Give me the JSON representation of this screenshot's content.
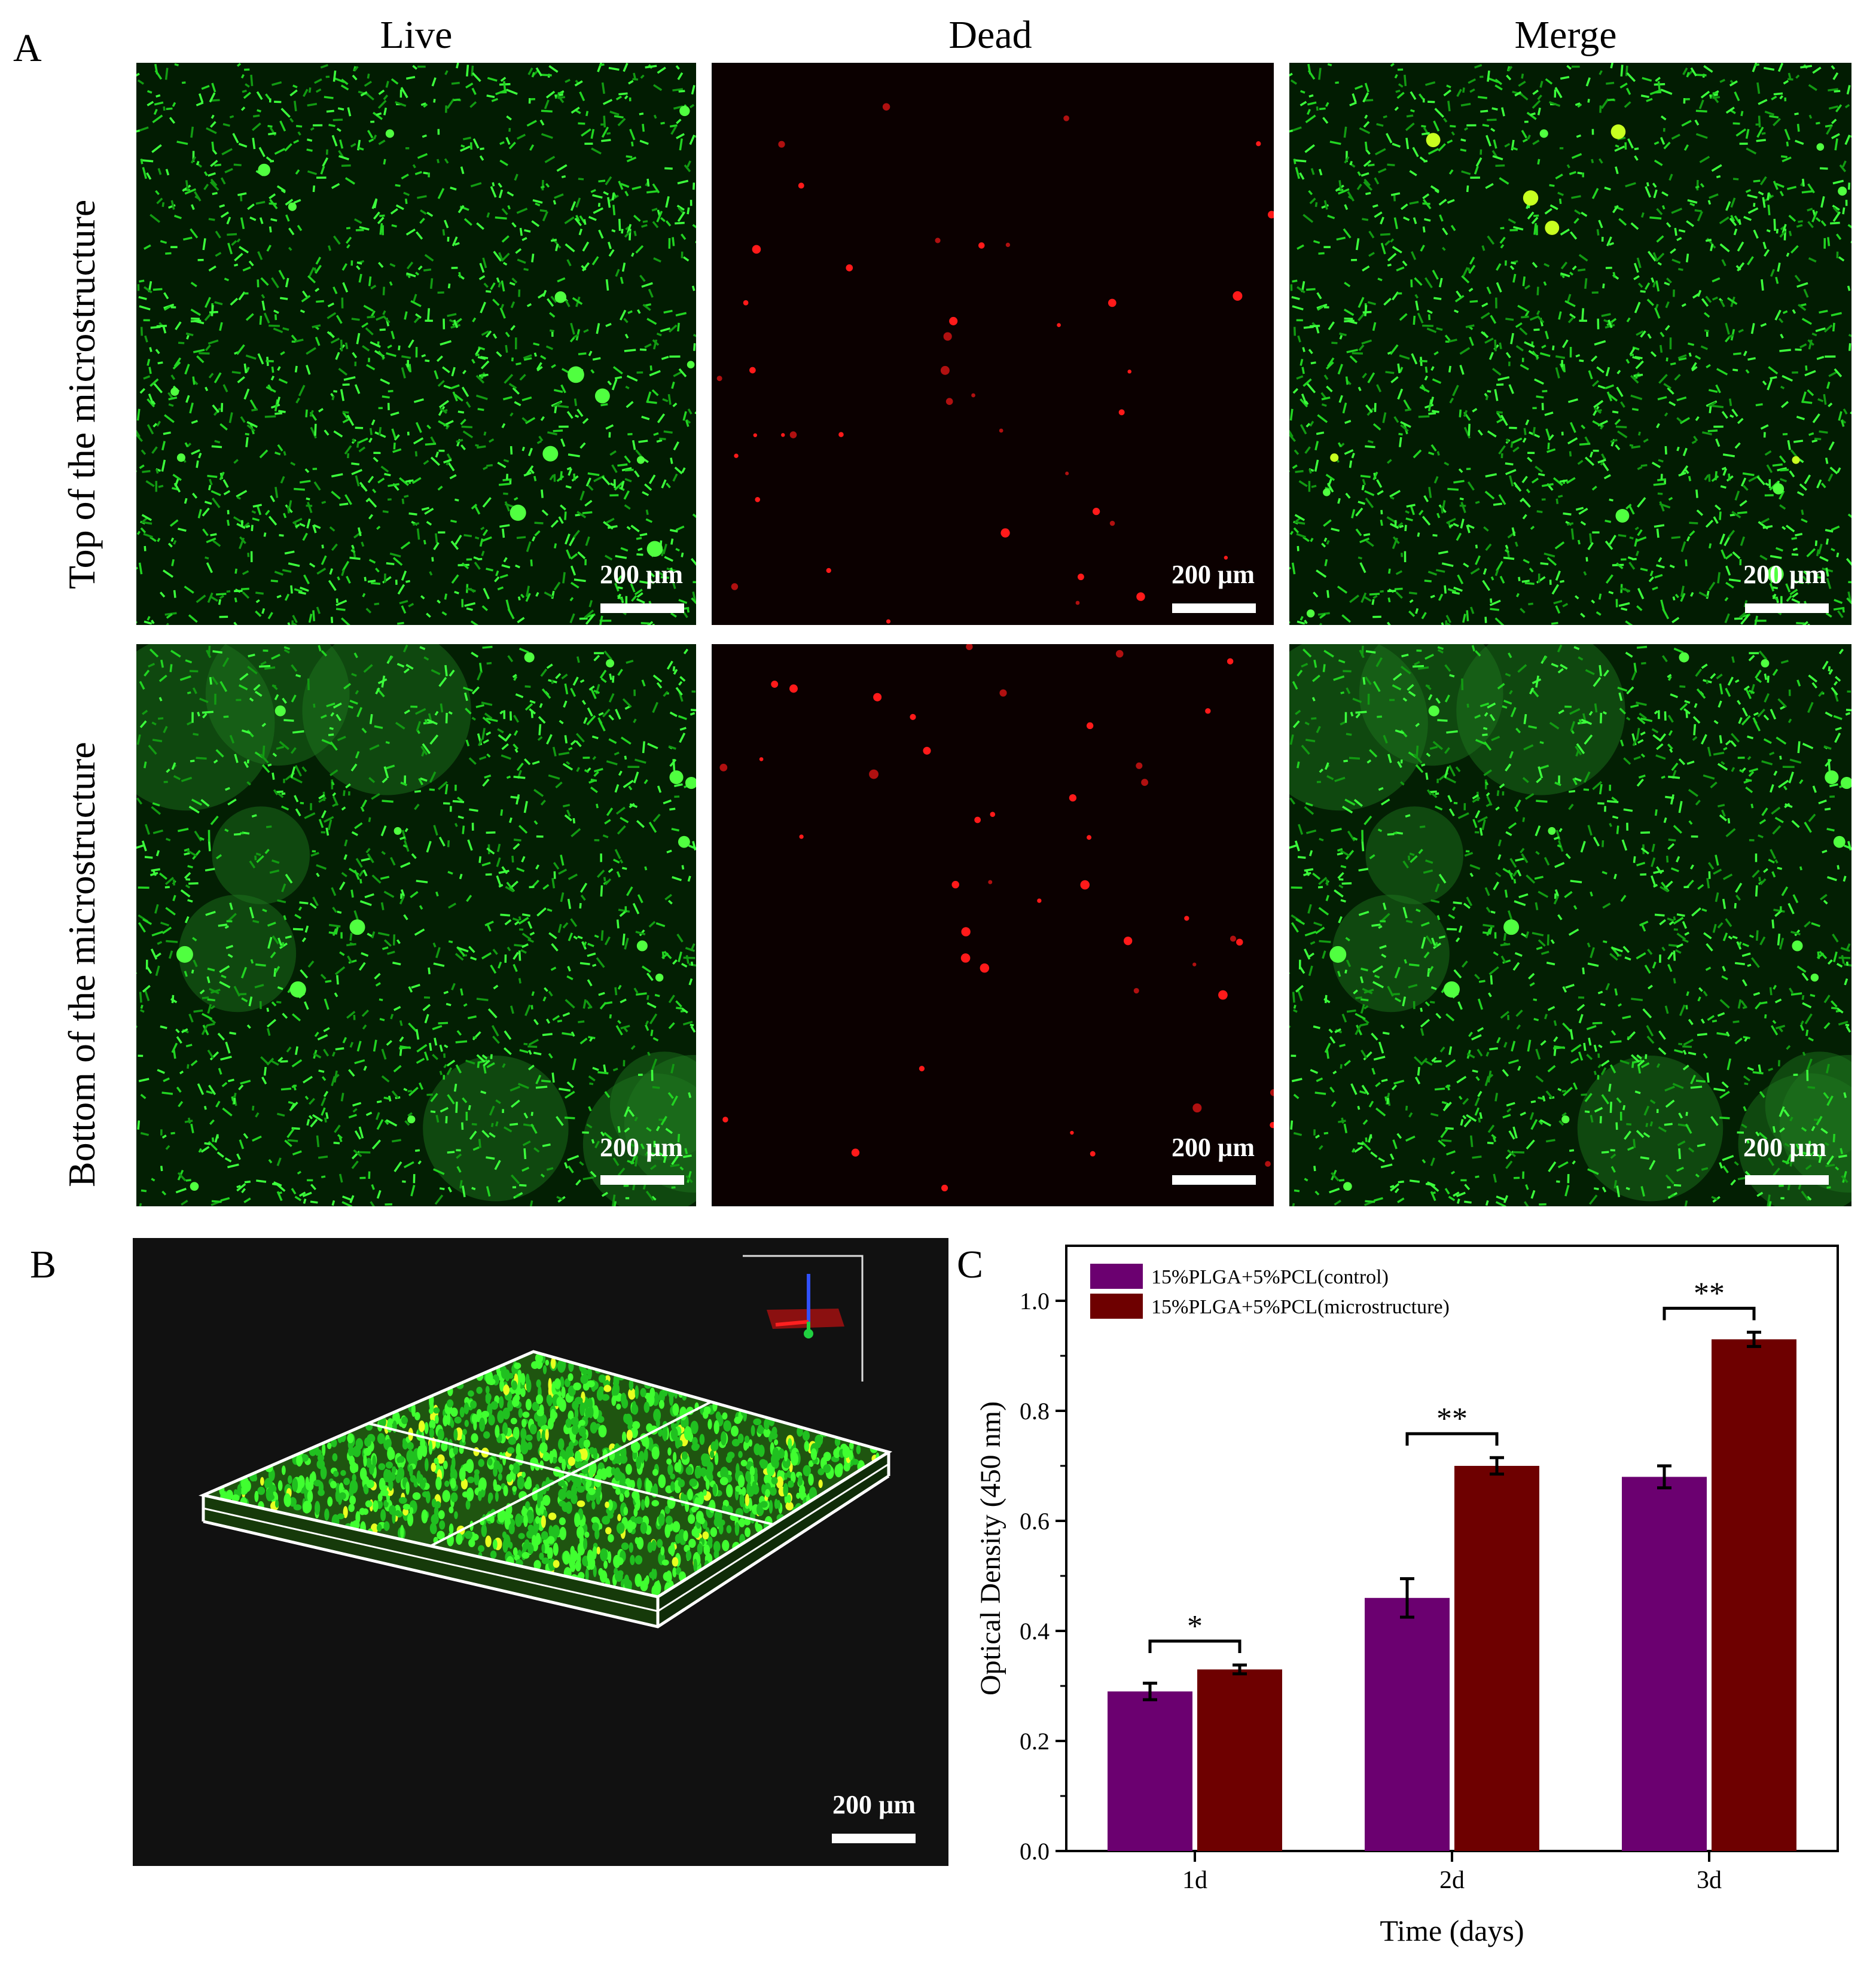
{
  "panel_a": {
    "letter": "A",
    "columns": [
      "Live",
      "Dead",
      "Merge"
    ],
    "rows": [
      "Top of the microstructure",
      "Bottom of the microstructure"
    ],
    "scale_label": "200 µm"
  },
  "panel_b": {
    "letter": "B",
    "scale_label": "200 µm"
  },
  "panel_c": {
    "letter": "C",
    "chart_data": {
      "type": "bar",
      "categories": [
        "1d",
        "2d",
        "3d"
      ],
      "series": [
        {
          "name": "15%PLGA+5%PCL(control)",
          "color": "#6b0070",
          "values": [
            0.29,
            0.46,
            0.68
          ],
          "errors": [
            0.015,
            0.035,
            0.02
          ]
        },
        {
          "name": "15%PLGA+5%PCL(microstructure)",
          "color": "#6e0000",
          "values": [
            0.33,
            0.7,
            0.93
          ],
          "errors": [
            0.008,
            0.015,
            0.013
          ]
        }
      ],
      "xlabel": "Time (days)",
      "ylabel": "Optical Density (450 nm)",
      "ylim": [
        0,
        1.1
      ],
      "yticks": [
        "0.0",
        "0.2",
        "0.4",
        "0.6",
        "0.8",
        "1.0"
      ],
      "significance": [
        "*",
        "**",
        "**"
      ],
      "legend_position": "top-left"
    }
  }
}
